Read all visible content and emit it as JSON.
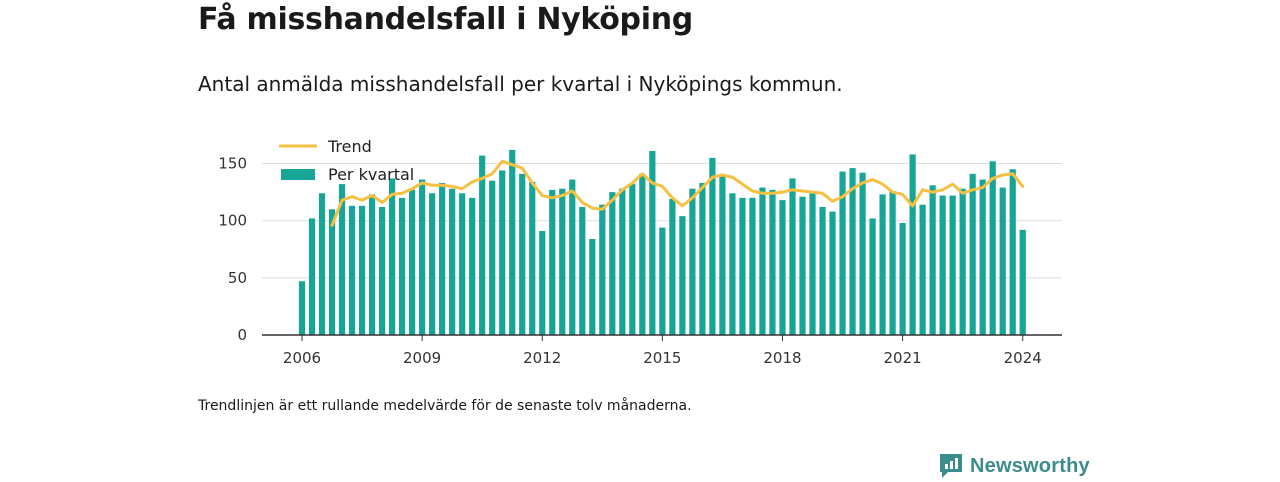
{
  "title": "Få misshandelsfall i Nyköping",
  "subtitle": "Antal anmälda misshandelsfall per kvartal i Nyköpings kommun.",
  "footnote": "Trendlinjen är ett rullande medelvärde för de senaste tolv månaderna.",
  "logo_text": "Newsworthy",
  "colors": {
    "bar": "#16a596",
    "trend": "#f6c042",
    "grid": "#dddddd",
    "axis": "#333333",
    "logo": "#3b8c8c"
  },
  "chart_data": {
    "type": "bar",
    "x_start": "2006 Q1",
    "x_ticks": [
      "2006",
      "2009",
      "2012",
      "2015",
      "2018",
      "2021",
      "2024"
    ],
    "y_ticks": [
      "0",
      "50",
      "100",
      "150"
    ],
    "ylim": [
      0,
      170
    ],
    "grid": true,
    "legend_position": "top-left",
    "series": [
      {
        "name": "Per kvartal",
        "type": "bar",
        "values": [
          47,
          102,
          124,
          110,
          132,
          113,
          113,
          123,
          112,
          137,
          120,
          127,
          136,
          124,
          133,
          128,
          124,
          120,
          157,
          135,
          144,
          162,
          141,
          134,
          91,
          127,
          128,
          136,
          112,
          84,
          114,
          125,
          128,
          132,
          141,
          161,
          94,
          119,
          104,
          128,
          133,
          155,
          139,
          124,
          120,
          120,
          129,
          127,
          118,
          137,
          121,
          124,
          112,
          108,
          143,
          146,
          142,
          102,
          123,
          126,
          98,
          158,
          114,
          131,
          122,
          122,
          128,
          141,
          136,
          152,
          129,
          145,
          92
        ]
      },
      {
        "name": "Trend",
        "type": "line",
        "values": [
          null,
          null,
          null,
          96,
          118,
          121,
          118,
          122,
          116,
          123,
          124,
          128,
          133,
          131,
          131,
          130,
          128,
          134,
          137,
          141,
          152,
          149,
          146,
          133,
          122,
          120,
          122,
          126,
          116,
          111,
          110,
          118,
          127,
          133,
          141,
          133,
          130,
          120,
          113,
          120,
          129,
          138,
          140,
          138,
          132,
          126,
          124,
          124,
          125,
          127,
          126,
          125,
          124,
          117,
          121,
          128,
          133,
          136,
          132,
          125,
          123,
          113,
          127,
          125,
          127,
          132,
          124,
          127,
          129,
          137,
          140,
          141,
          130
        ]
      }
    ]
  }
}
